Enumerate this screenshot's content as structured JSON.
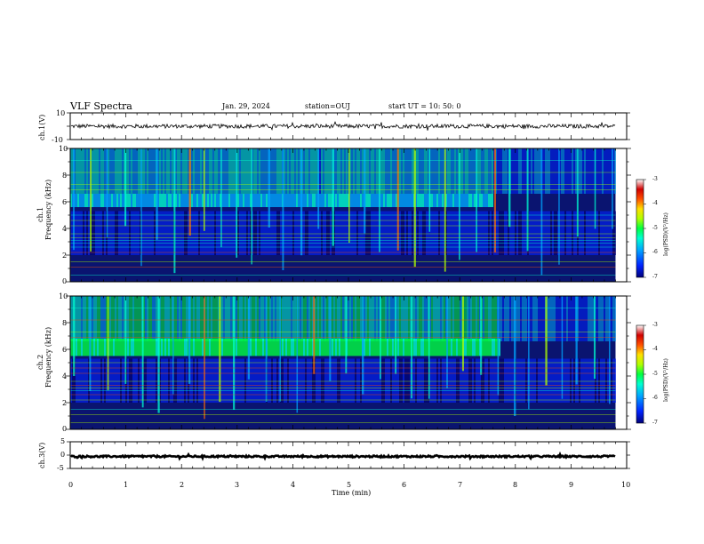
{
  "header": {
    "title": "VLF Spectra",
    "date": "Jan. 29, 2024",
    "station": "station=OUJ",
    "start": "start  UT =   10: 50: 0"
  },
  "colors": {
    "spectrogram_bg": "#0a1470",
    "waveform": "#000000",
    "colormap": [
      "#00007a",
      "#0022ff",
      "#00a6ff",
      "#00ffd0",
      "#00ff40",
      "#b0ff00",
      "#ffe000",
      "#ff5000",
      "#d00000",
      "#ffffff"
    ]
  },
  "chart_data": [
    {
      "type": "line",
      "panel": "ch1-waveform",
      "ylabel": "ch.1(V)",
      "ylim": [
        -10,
        10
      ],
      "yticks": [
        "10",
        "-10"
      ],
      "xlim": [
        0,
        10
      ],
      "description_values": {
        "x": [
          0,
          9.8
        ],
        "y_center": 0,
        "y_amplitude": 1.5
      }
    },
    {
      "type": "heatmap",
      "panel": "ch1-spectrogram",
      "ylabel": "ch.1\nFrequency (kHz)",
      "ylim": [
        0,
        10
      ],
      "yticks": [
        "0",
        "2",
        "4",
        "6",
        "8",
        "10"
      ],
      "xlim": [
        0,
        10
      ],
      "data_extent_min": 9.8,
      "band_khz": [
        5.6,
        6.6
      ],
      "band_end_min": 7.6,
      "colorbar": {
        "label": "log(PSD)(V²/Hz)",
        "range": [
          -7,
          -3
        ],
        "ticks": [
          "-3",
          "-4",
          "-5",
          "-6",
          "-7"
        ]
      }
    },
    {
      "type": "heatmap",
      "panel": "ch2-spectrogram",
      "ylabel": "ch.2\nFrequency (kHz)",
      "ylim": [
        0,
        10
      ],
      "yticks": [
        "0",
        "2",
        "4",
        "6",
        "8",
        "10"
      ],
      "xlim": [
        0,
        10
      ],
      "data_extent_min": 9.8,
      "band_khz": [
        5.5,
        6.8
      ],
      "band_end_min": 7.7,
      "colorbar": {
        "label": "log(PSD)(V²/Hz)",
        "range": [
          -7,
          -3
        ],
        "ticks": [
          "-3",
          "-4",
          "-5",
          "-6",
          "-7"
        ]
      }
    },
    {
      "type": "line",
      "panel": "ch3-waveform",
      "ylabel": "ch.3(V)",
      "ylim": [
        -5,
        5
      ],
      "yticks": [
        "5",
        "0",
        "-5"
      ],
      "xlim": [
        0,
        10
      ],
      "description_values": {
        "x": [
          0,
          9.8
        ],
        "y_center": -0.5,
        "y_amplitude": 0.3
      }
    }
  ],
  "xaxis": {
    "label": "Time (min)",
    "ticks": [
      "0",
      "1",
      "2",
      "3",
      "4",
      "5",
      "6",
      "7",
      "8",
      "9",
      "10"
    ]
  },
  "ylabels": {
    "ch1_wave": "ch.1(V)",
    "ch1_spec_a": "ch.1",
    "ch1_spec_b": "Frequency (kHz)",
    "ch2_spec_a": "ch.2",
    "ch2_spec_b": "Frequency (kHz)",
    "ch3_wave": "ch.3(V)"
  },
  "ticklabels": {
    "ch1_wave": [
      "10",
      "-10"
    ],
    "spec": [
      "10",
      "8",
      "6",
      "4",
      "2",
      "0"
    ],
    "ch3_wave": [
      "5",
      "0",
      "-5"
    ]
  },
  "colorbar": {
    "label": "log(PSD)(V²/Hz)",
    "ticks": [
      "-3",
      "-4",
      "-5",
      "-6",
      "-7"
    ]
  }
}
